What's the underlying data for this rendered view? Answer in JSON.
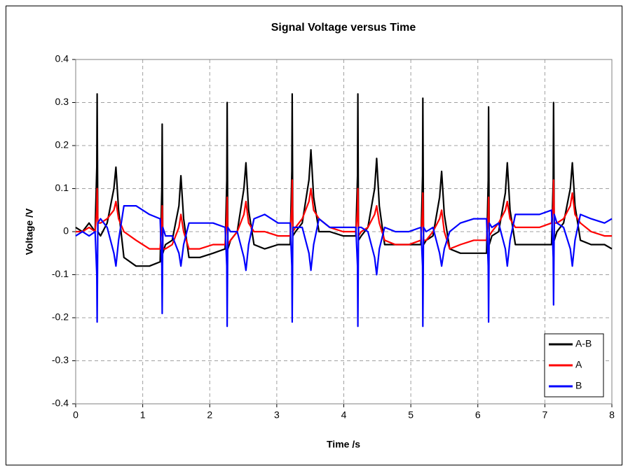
{
  "chart_data": {
    "type": "line",
    "title": "Signal Voltage versus Time",
    "x_label": "Time /s",
    "y_label": "Voltage /V",
    "x": [
      0,
      0.1,
      0.2,
      0.29,
      0.315,
      0.32,
      0.33,
      0.37,
      0.47,
      0.57,
      0.6,
      0.64,
      0.72,
      0.9,
      1.1,
      1.26,
      1.285,
      1.29,
      1.3,
      1.34,
      1.44,
      1.54,
      1.57,
      1.61,
      1.69,
      1.85,
      2.05,
      2.23,
      2.255,
      2.26,
      2.27,
      2.31,
      2.41,
      2.51,
      2.54,
      2.58,
      2.66,
      2.82,
      3.02,
      3.2,
      3.225,
      3.23,
      3.24,
      3.28,
      3.38,
      3.48,
      3.51,
      3.55,
      3.63,
      3.79,
      3.99,
      4.18,
      4.205,
      4.21,
      4.22,
      4.26,
      4.36,
      4.46,
      4.49,
      4.53,
      4.61,
      4.77,
      4.97,
      5.15,
      5.175,
      5.18,
      5.19,
      5.23,
      5.33,
      5.43,
      5.46,
      5.5,
      5.58,
      5.74,
      5.94,
      6.13,
      6.155,
      6.16,
      6.17,
      6.21,
      6.31,
      6.41,
      6.44,
      6.48,
      6.56,
      6.72,
      6.92,
      7.1,
      7.125,
      7.13,
      7.14,
      7.18,
      7.28,
      7.38,
      7.41,
      7.45,
      7.53,
      7.69,
      7.89,
      8
    ],
    "series": [
      {
        "name": "A-B",
        "color": "#000000",
        "values": [
          0.01,
          0,
          0.02,
          0,
          0.15,
          0.32,
          0,
          -0.01,
          0.02,
          0.1,
          0.15,
          0.05,
          -0.06,
          -0.08,
          -0.08,
          -0.07,
          0.1,
          0.25,
          -0.05,
          -0.03,
          -0.02,
          0.06,
          0.13,
          0.03,
          -0.06,
          -0.06,
          -0.05,
          -0.04,
          0.12,
          0.3,
          -0.04,
          -0.02,
          0,
          0.1,
          0.16,
          0.05,
          -0.03,
          -0.04,
          -0.03,
          -0.03,
          0.14,
          0.32,
          -0.01,
          0,
          0.02,
          0.12,
          0.19,
          0.08,
          0,
          0,
          -0.01,
          -0.01,
          0.13,
          0.32,
          -0.02,
          -0.01,
          0.01,
          0.1,
          0.17,
          0.06,
          -0.03,
          -0.03,
          -0.03,
          -0.03,
          0.13,
          0.31,
          -0.03,
          -0.02,
          -0.01,
          0.08,
          0.14,
          0.04,
          -0.04,
          -0.05,
          -0.05,
          -0.05,
          0.12,
          0.29,
          -0.03,
          -0.01,
          0,
          0.09,
          0.16,
          0.05,
          -0.03,
          -0.03,
          -0.03,
          -0.03,
          0.12,
          0.3,
          -0.02,
          0,
          0.02,
          0.1,
          0.16,
          0.06,
          -0.02,
          -0.03,
          -0.03,
          -0.04
        ]
      },
      {
        "name": "A",
        "color": "#ff0000",
        "values": [
          0,
          0,
          0.01,
          0,
          0.05,
          0.1,
          0.02,
          0.02,
          0.03,
          0.05,
          0.07,
          0.03,
          0,
          -0.02,
          -0.04,
          -0.04,
          0.02,
          0.06,
          -0.04,
          -0.04,
          -0.03,
          0.01,
          0.04,
          0,
          -0.04,
          -0.04,
          -0.03,
          -0.03,
          0.04,
          0.08,
          -0.03,
          -0.02,
          0,
          0.04,
          0.07,
          0.02,
          0,
          0,
          -0.01,
          -0.01,
          0.06,
          0.12,
          0,
          0.01,
          0.03,
          0.07,
          0.1,
          0.05,
          0.03,
          0.01,
          0,
          0,
          0.05,
          0.1,
          -0.01,
          0,
          0.01,
          0.04,
          0.06,
          0.02,
          -0.02,
          -0.03,
          -0.03,
          -0.02,
          0.05,
          0.09,
          -0.02,
          -0.02,
          0,
          0.03,
          0.05,
          0,
          -0.04,
          -0.03,
          -0.02,
          -0.02,
          0.04,
          0.08,
          -0.01,
          0,
          0.02,
          0.05,
          0.07,
          0.03,
          0.01,
          0.01,
          0.01,
          0.02,
          0.06,
          0.12,
          0.02,
          0.02,
          0.03,
          0.06,
          0.09,
          0.04,
          0.02,
          0,
          -0.01,
          -0.01
        ]
      },
      {
        "name": "B",
        "color": "#0000ff",
        "values": [
          -0.01,
          0,
          -0.01,
          0,
          -0.1,
          -0.21,
          0.02,
          0.03,
          0.01,
          -0.05,
          -0.08,
          -0.02,
          0.06,
          0.06,
          0.04,
          0.03,
          -0.08,
          -0.19,
          0.01,
          -0.01,
          -0.01,
          -0.05,
          -0.08,
          -0.03,
          0.02,
          0.02,
          0.02,
          0.01,
          -0.08,
          -0.22,
          0.01,
          0,
          0,
          -0.06,
          -0.09,
          -0.03,
          0.03,
          0.04,
          0.02,
          0.02,
          -0.08,
          -0.21,
          0.01,
          0.01,
          0.01,
          -0.05,
          -0.09,
          -0.03,
          0.03,
          0.01,
          0.01,
          0.01,
          -0.08,
          -0.22,
          0.01,
          0.01,
          0,
          -0.06,
          -0.1,
          -0.04,
          0.01,
          0,
          0,
          0.01,
          -0.08,
          -0.22,
          0.01,
          0,
          0.01,
          -0.05,
          -0.08,
          -0.04,
          0,
          0.02,
          0.03,
          0.03,
          -0.08,
          -0.21,
          0.02,
          0.01,
          0.02,
          -0.04,
          -0.08,
          -0.02,
          0.04,
          0.04,
          0.04,
          0.05,
          -0.06,
          -0.17,
          0.04,
          0.02,
          0.01,
          -0.04,
          -0.08,
          -0.02,
          0.04,
          0.03,
          0.02,
          0.03
        ]
      }
    ],
    "xlim": [
      0,
      8
    ],
    "xticks": [
      0,
      1,
      2,
      3,
      4,
      5,
      6,
      7,
      8
    ],
    "ylim": [
      -0.4,
      0.4
    ],
    "yticks": [
      -0.4,
      -0.3,
      -0.2,
      -0.1,
      0,
      0.1,
      0.2,
      0.3,
      0.4
    ],
    "grid": true,
    "legend": "lower right"
  }
}
